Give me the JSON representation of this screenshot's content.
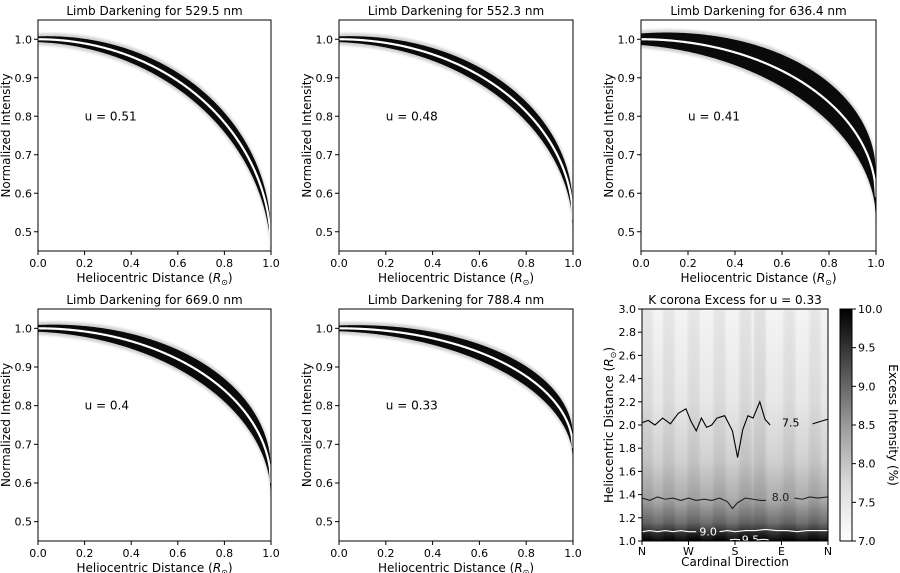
{
  "chart_data": [
    {
      "type": "scatter",
      "title": "Limb Darkening for 529.5 nm",
      "xlabel_main": "Heliocentric Distance (",
      "xlabel_sym": "R",
      "xlabel_sub": "⊙",
      "xlabel_end": ")",
      "ylabel": "Normalized Intensity",
      "xlim": [
        0.0,
        1.0
      ],
      "ylim": [
        0.45,
        1.05
      ],
      "xticks": [
        0.0,
        0.2,
        0.4,
        0.6,
        0.8,
        1.0
      ],
      "xtick_labels": [
        "0.0",
        "0.2",
        "0.4",
        "0.6",
        "0.8",
        "1.0"
      ],
      "yticks": [
        0.5,
        0.6,
        0.7,
        0.8,
        0.9,
        1.0
      ],
      "ytick_labels": [
        "0.5",
        "0.6",
        "0.7",
        "0.8",
        "0.9",
        "1.0"
      ],
      "u": 0.51,
      "annotation": "u = 0.51",
      "min_intensity": 0.46,
      "band_spread": 0.03
    },
    {
      "type": "scatter",
      "title": "Limb Darkening for 552.3 nm",
      "xlabel_main": "Heliocentric Distance (",
      "xlabel_sym": "R",
      "xlabel_sub": "⊙",
      "xlabel_end": ")",
      "ylabel": "Normalized Intensity",
      "xlim": [
        0.0,
        1.0
      ],
      "ylim": [
        0.45,
        1.05
      ],
      "xticks": [
        0.0,
        0.2,
        0.4,
        0.6,
        0.8,
        1.0
      ],
      "xtick_labels": [
        "0.0",
        "0.2",
        "0.4",
        "0.6",
        "0.8",
        "1.0"
      ],
      "yticks": [
        0.5,
        0.6,
        0.7,
        0.8,
        0.9,
        1.0
      ],
      "ytick_labels": [
        "0.5",
        "0.6",
        "0.7",
        "0.8",
        "0.9",
        "1.0"
      ],
      "u": 0.48,
      "annotation": "u = 0.48",
      "min_intensity": 0.53,
      "band_spread": 0.03
    },
    {
      "type": "scatter",
      "title": "Limb Darkening for 636.4 nm",
      "xlabel_main": "Heliocentric Distance (",
      "xlabel_sym": "R",
      "xlabel_sub": "⊙",
      "xlabel_end": ")",
      "ylabel": "Normalized Intensity",
      "xlim": [
        0.0,
        1.0
      ],
      "ylim": [
        0.45,
        1.05
      ],
      "xticks": [
        0.0,
        0.2,
        0.4,
        0.6,
        0.8,
        1.0
      ],
      "xtick_labels": [
        "0.0",
        "0.2",
        "0.4",
        "0.6",
        "0.8",
        "1.0"
      ],
      "yticks": [
        0.5,
        0.6,
        0.7,
        0.8,
        0.9,
        1.0
      ],
      "ytick_labels": [
        "0.5",
        "0.6",
        "0.7",
        "0.8",
        "0.9",
        "1.0"
      ],
      "u": 0.41,
      "annotation": "u = 0.41",
      "min_intensity": 0.59,
      "band_spread": 0.06
    },
    {
      "type": "scatter",
      "title": "Limb Darkening for 669.0 nm",
      "xlabel_main": "Heliocentric Distance (",
      "xlabel_sym": "R",
      "xlabel_sub": "⊙",
      "xlabel_end": ")",
      "ylabel": "Normalized Intensity",
      "xlim": [
        0.0,
        1.0
      ],
      "ylim": [
        0.45,
        1.05
      ],
      "xticks": [
        0.0,
        0.2,
        0.4,
        0.6,
        0.8,
        1.0
      ],
      "xtick_labels": [
        "0.0",
        "0.2",
        "0.4",
        "0.6",
        "0.8",
        "1.0"
      ],
      "yticks": [
        0.5,
        0.6,
        0.7,
        0.8,
        0.9,
        1.0
      ],
      "ytick_labels": [
        "0.5",
        "0.6",
        "0.7",
        "0.8",
        "0.9",
        "1.0"
      ],
      "u": 0.4,
      "annotation": "u = 0.4",
      "min_intensity": 0.6,
      "band_spread": 0.035
    },
    {
      "type": "scatter",
      "title": "Limb Darkening for 788.4 nm",
      "xlabel_main": "Heliocentric Distance (",
      "xlabel_sym": "R",
      "xlabel_sub": "⊙",
      "xlabel_end": ")",
      "ylabel": "Normalized Intensity",
      "xlim": [
        0.0,
        1.0
      ],
      "ylim": [
        0.45,
        1.05
      ],
      "xticks": [
        0.0,
        0.2,
        0.4,
        0.6,
        0.8,
        1.0
      ],
      "xtick_labels": [
        "0.0",
        "0.2",
        "0.4",
        "0.6",
        "0.8",
        "1.0"
      ],
      "yticks": [
        0.5,
        0.6,
        0.7,
        0.8,
        0.9,
        1.0
      ],
      "ytick_labels": [
        "0.5",
        "0.6",
        "0.7",
        "0.8",
        "0.9",
        "1.0"
      ],
      "u": 0.33,
      "annotation": "u = 0.33",
      "min_intensity": 0.69,
      "band_spread": 0.03
    },
    {
      "type": "heatmap",
      "title": "K corona Excess for u = 0.33",
      "xlabel": "Cardinal Direction",
      "ylabel_main": "Heliocentric Distance (",
      "ylabel_sym": "R",
      "ylabel_sub": "⊙",
      "ylabel_end": ")",
      "xlim": [
        0,
        360
      ],
      "ylim": [
        1.0,
        3.0
      ],
      "xticks": [
        0,
        90,
        180,
        270,
        360
      ],
      "xtick_labels": [
        "N",
        "W",
        "S",
        "E",
        "N"
      ],
      "yticks": [
        1.0,
        1.2,
        1.4,
        1.6,
        1.8,
        2.0,
        2.2,
        2.4,
        2.6,
        2.8,
        3.0
      ],
      "ytick_labels": [
        "1.0",
        "1.2",
        "1.4",
        "1.6",
        "1.8",
        "2.0",
        "2.2",
        "2.4",
        "2.6",
        "2.8",
        "3.0"
      ],
      "colorbar": {
        "label": "Excess Intensity (%)",
        "range": [
          7.0,
          10.0
        ],
        "ticks": [
          7.0,
          7.5,
          8.0,
          8.5,
          9.0,
          9.5,
          10.0
        ],
        "tick_labels": [
          "7.0",
          "7.5",
          "8.0",
          "8.5",
          "9.0",
          "9.5",
          "10.0"
        ],
        "colormap": "Greys"
      },
      "contours": [
        {
          "level": 7.5,
          "label": "7.5",
          "line_color": "#000000",
          "points": [
            [
              0,
              2.02
            ],
            [
              12,
              2.04
            ],
            [
              25,
              2.0
            ],
            [
              40,
              2.06
            ],
            [
              55,
              2.01
            ],
            [
              70,
              2.1
            ],
            [
              85,
              2.14
            ],
            [
              95,
              2.03
            ],
            [
              105,
              1.95
            ],
            [
              115,
              2.06
            ],
            [
              125,
              1.98
            ],
            [
              135,
              2.0
            ],
            [
              145,
              2.06
            ],
            [
              160,
              2.08
            ],
            [
              175,
              1.95
            ],
            [
              185,
              1.72
            ],
            [
              195,
              1.96
            ],
            [
              205,
              2.08
            ],
            [
              215,
              2.06
            ],
            [
              228,
              2.2
            ],
            [
              238,
              2.05
            ],
            [
              248,
              2.0
            ]
          ],
          "points2": [
            [
              330,
              2.01
            ],
            [
              345,
              2.03
            ],
            [
              360,
              2.05
            ]
          ]
        },
        {
          "level": 8.0,
          "label": "8.0",
          "line_color": "#202020",
          "points": [
            [
              0,
              1.37
            ],
            [
              15,
              1.35
            ],
            [
              30,
              1.38
            ],
            [
              45,
              1.36
            ],
            [
              60,
              1.37
            ],
            [
              75,
              1.35
            ],
            [
              90,
              1.37
            ],
            [
              105,
              1.35
            ],
            [
              120,
              1.36
            ],
            [
              135,
              1.35
            ],
            [
              150,
              1.37
            ],
            [
              165,
              1.34
            ],
            [
              175,
              1.28
            ],
            [
              185,
              1.33
            ],
            [
              200,
              1.37
            ],
            [
              215,
              1.36
            ],
            [
              230,
              1.35
            ],
            [
              240,
              1.35
            ]
          ],
          "points2": [
            [
              295,
              1.37
            ],
            [
              310,
              1.36
            ],
            [
              325,
              1.38
            ],
            [
              340,
              1.37
            ],
            [
              360,
              1.38
            ]
          ]
        },
        {
          "level": 9.0,
          "label": "9.0",
          "line_color": "#ffffff",
          "points": [
            [
              0,
              1.08
            ],
            [
              15,
              1.09
            ],
            [
              30,
              1.08
            ],
            [
              45,
              1.09
            ],
            [
              60,
              1.08
            ],
            [
              75,
              1.09
            ],
            [
              90,
              1.08
            ],
            [
              105,
              1.08
            ]
          ],
          "points2": [
            [
              150,
              1.08
            ],
            [
              165,
              1.09
            ],
            [
              180,
              1.08
            ],
            [
              200,
              1.09
            ],
            [
              220,
              1.09
            ],
            [
              240,
              1.1
            ],
            [
              260,
              1.09
            ],
            [
              280,
              1.09
            ],
            [
              300,
              1.08
            ],
            [
              320,
              1.09
            ],
            [
              340,
              1.09
            ],
            [
              360,
              1.09
            ]
          ]
        },
        {
          "level": 9.5,
          "label": "9.5",
          "line_color": "#ffffff",
          "points": [
            [
              170,
              1.01
            ],
            [
              180,
              1.015
            ],
            [
              190,
              1.01
            ]
          ],
          "points2": [
            [
              225,
              1.01
            ],
            [
              235,
              1.015
            ],
            [
              245,
              1.01
            ]
          ]
        }
      ]
    }
  ]
}
